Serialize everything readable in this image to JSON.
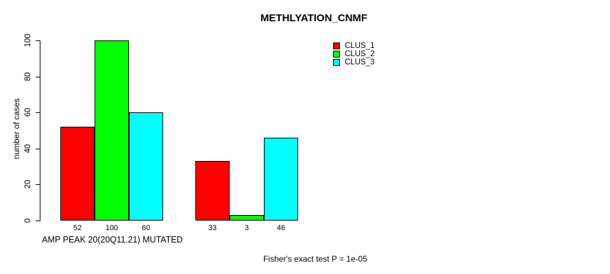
{
  "chart_data": {
    "type": "bar",
    "title": "METHLYATION_CNMF",
    "ylabel": "number of cases",
    "ylim": [
      0,
      100
    ],
    "yticks": [
      "0",
      "20",
      "40",
      "60",
      "80",
      "100"
    ],
    "grid": false,
    "legend_position": "top-right",
    "annotation": "Fisher's exact test P = 1e-05",
    "bar_border_color": "#000000",
    "series": [
      {
        "name": "CLUS_1",
        "color": "#ff0000"
      },
      {
        "name": "CLUS_2",
        "color": "#00ff00"
      },
      {
        "name": "CLUS_3",
        "color": "#00ffff"
      }
    ],
    "groups": [
      {
        "label": "AMP PEAK 20(20Q11.21) MUTATED",
        "values": [
          52,
          100,
          60
        ]
      },
      {
        "label": "",
        "values": [
          33,
          3,
          46
        ]
      }
    ]
  }
}
